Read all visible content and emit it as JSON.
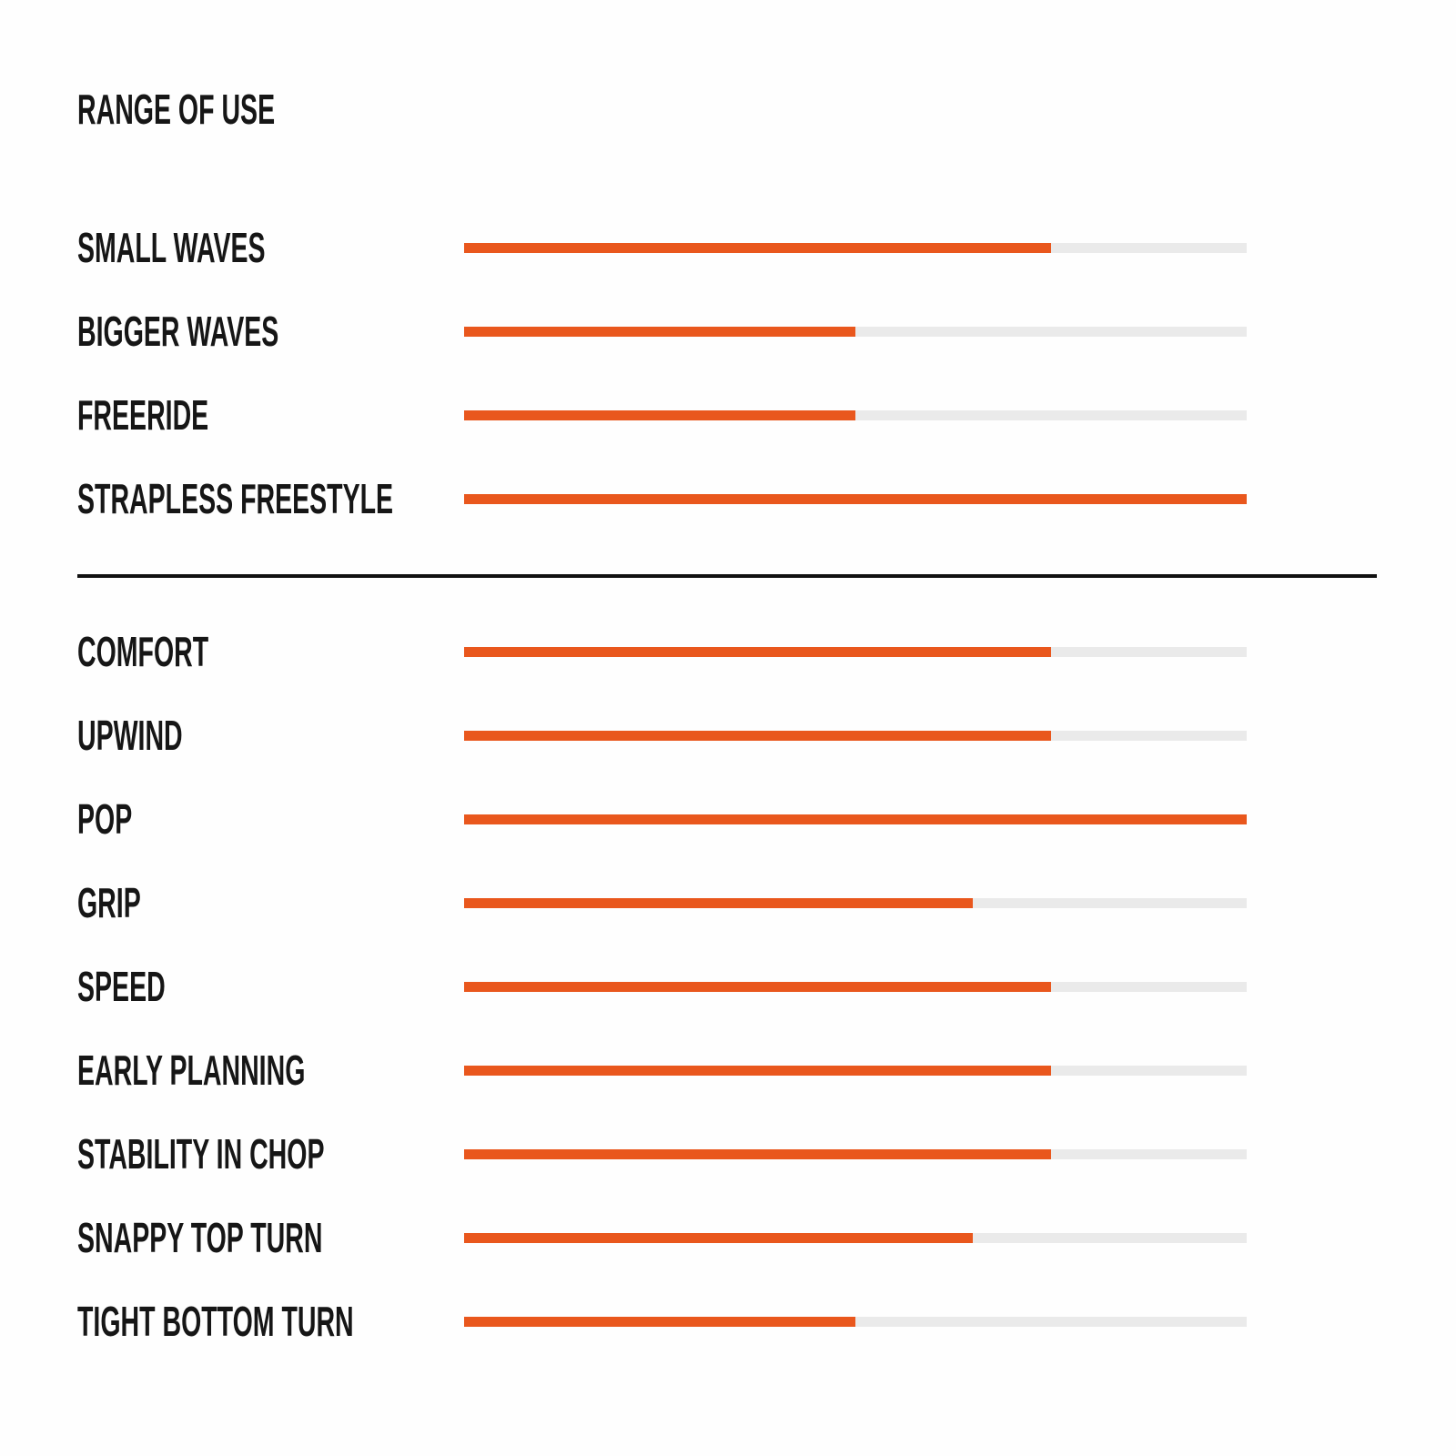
{
  "page": {
    "title": "RANGE OF USE"
  },
  "colors": {
    "bar_fill": "#E9571D",
    "bar_track": "#EAEAEA",
    "text": "#161616",
    "divider": "#111111",
    "background": "#FEFEFE"
  },
  "chart_data": {
    "type": "bar",
    "orientation": "horizontal",
    "title": "RANGE OF USE",
    "xlabel": "",
    "ylabel": "",
    "scale": {
      "min": 0,
      "max": 100,
      "unit": "%"
    },
    "grid": false,
    "legend": false,
    "bar_color": "#E9571D",
    "track_color": "#EAEAEA",
    "groups": [
      {
        "name": "range_of_use",
        "categories": [
          "SMALL WAVES",
          "BIGGER WAVES",
          "FREERIDE",
          "STRAPLESS FREESTYLE"
        ],
        "values": [
          75,
          50,
          50,
          100
        ]
      },
      {
        "name": "performance",
        "categories": [
          "COMFORT",
          "UPWIND",
          "POP",
          "GRIP",
          "SPEED",
          "EARLY PLANNING",
          "STABILITY IN CHOP",
          "SNAPPY TOP TURN",
          "TIGHT BOTTOM TURN"
        ],
        "values": [
          75,
          75,
          100,
          65,
          75,
          75,
          75,
          65,
          50
        ]
      }
    ]
  }
}
